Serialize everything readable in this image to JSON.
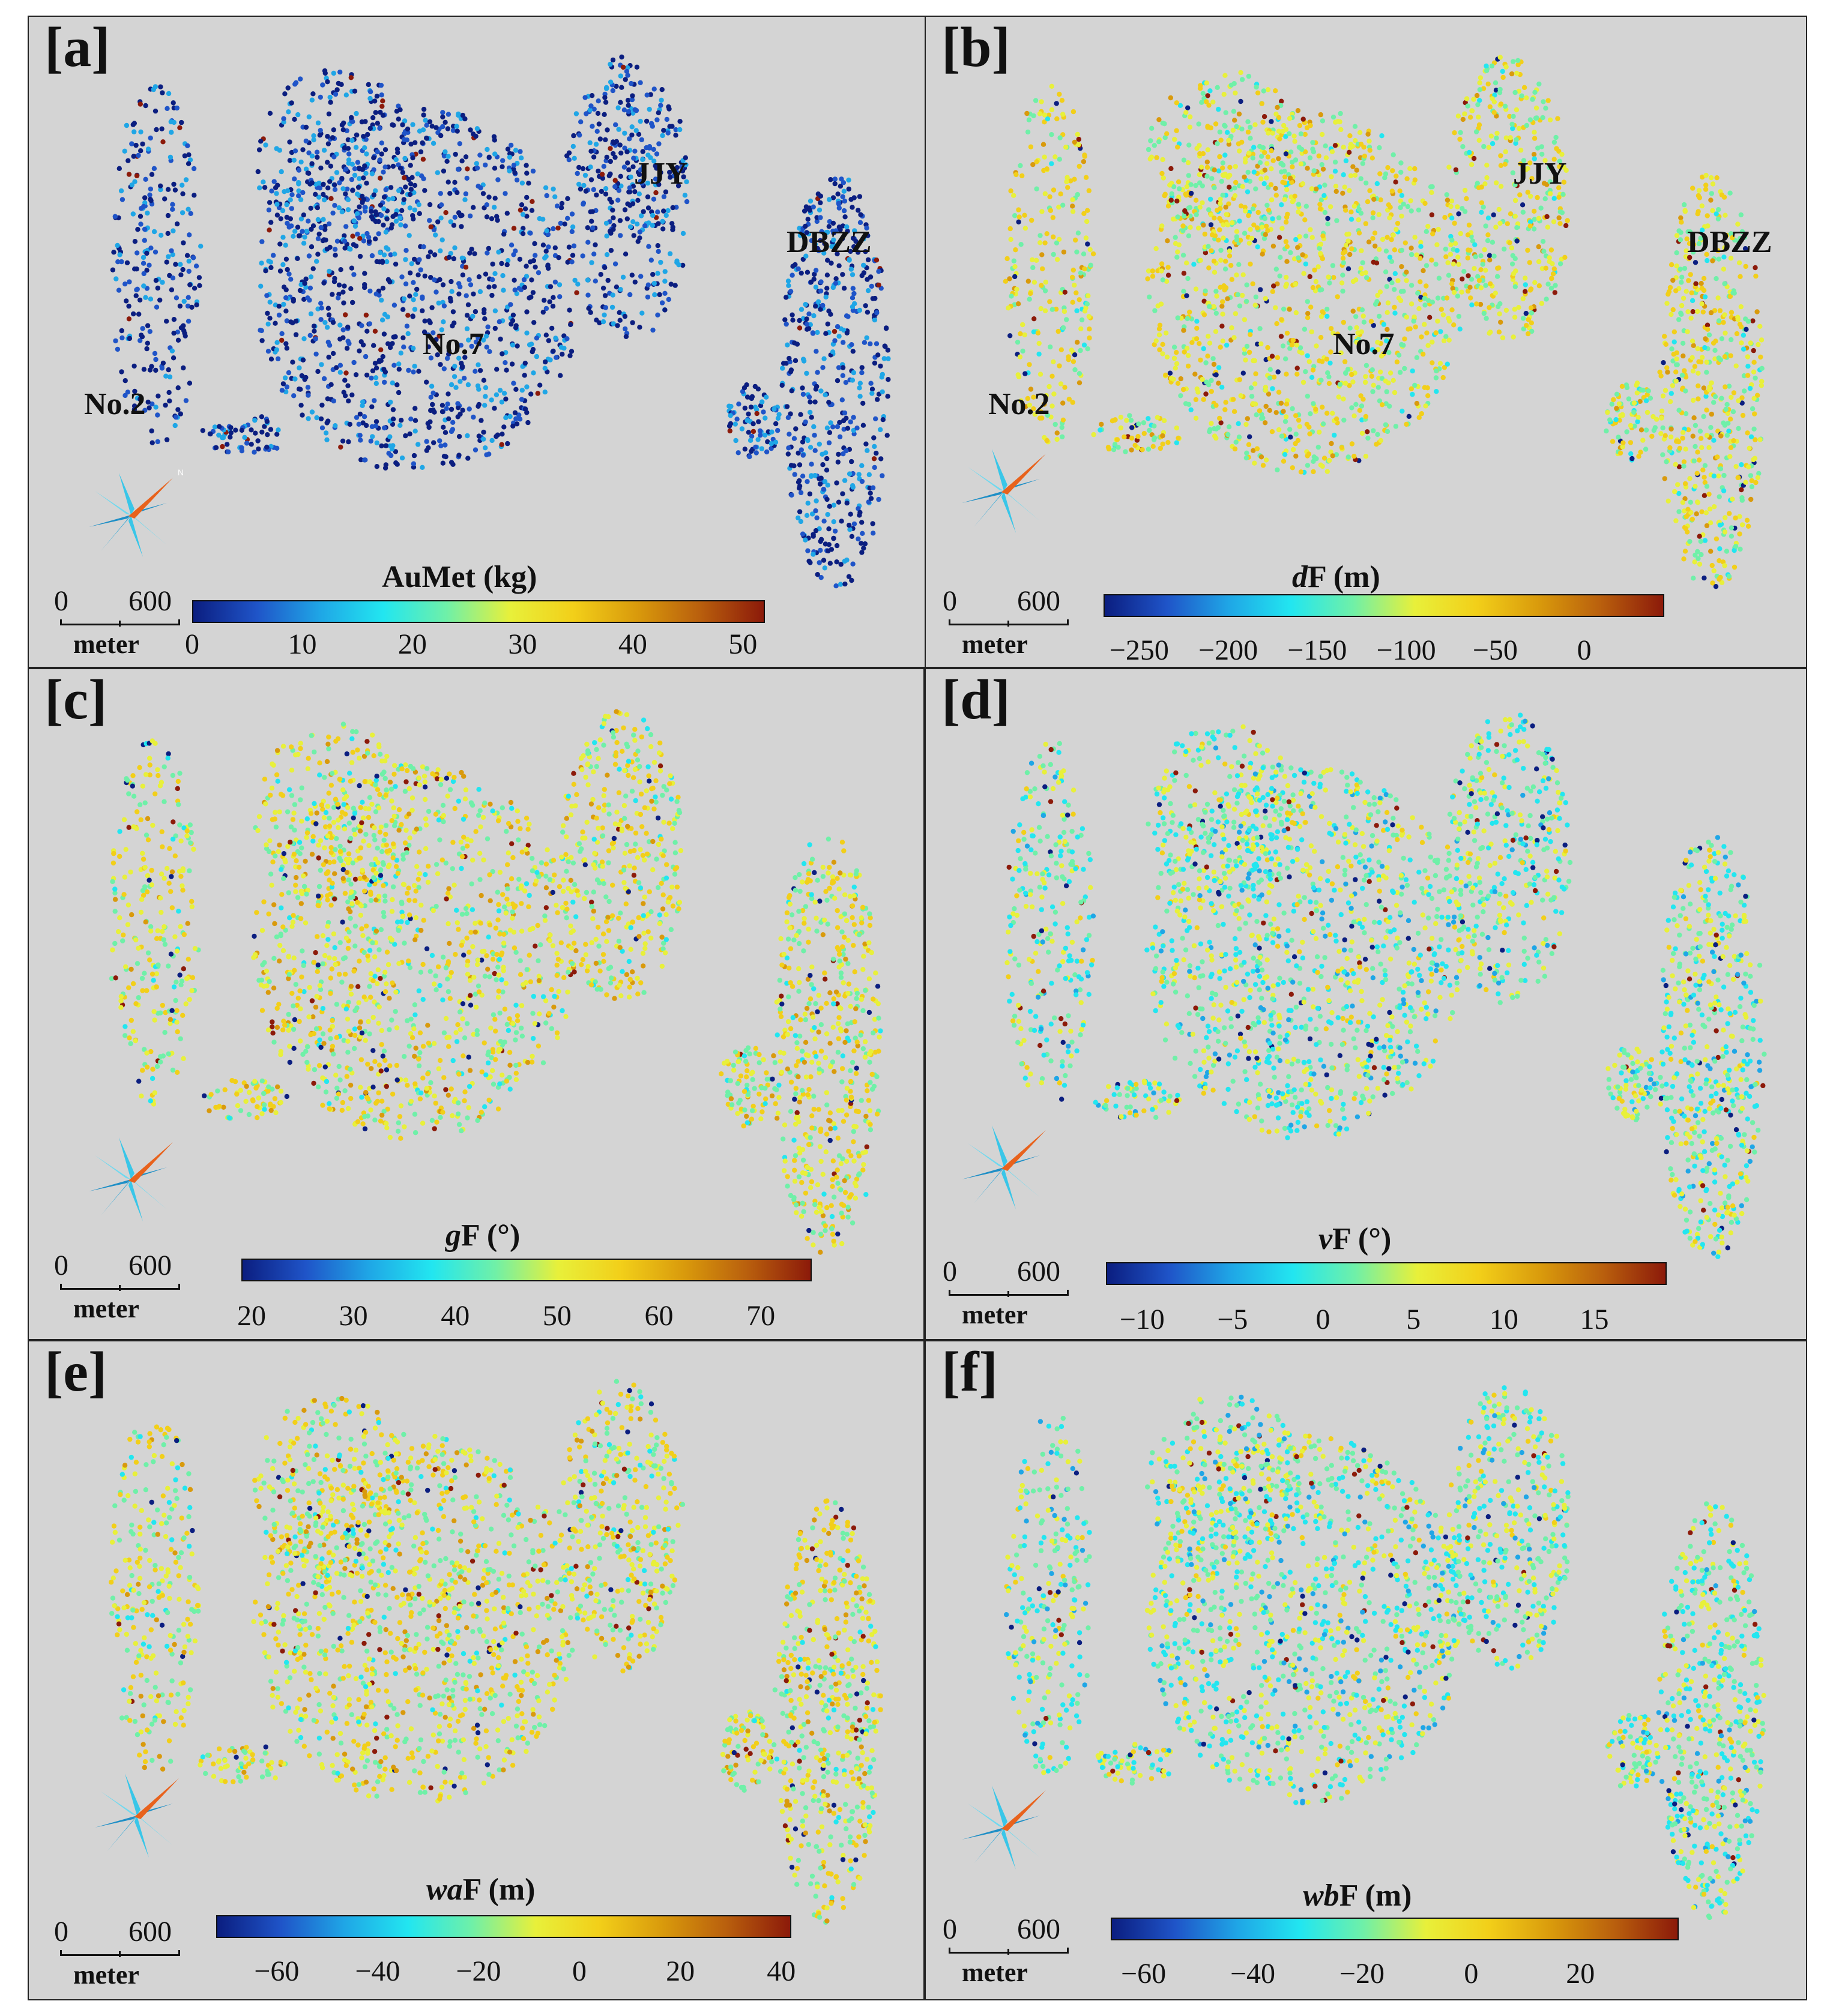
{
  "figure": {
    "panels": [
      {
        "id": "a",
        "label": "[a]",
        "cbar_title_prefix": "",
        "cbar_title_main": "AuMet (kg)",
        "ticks": [
          "0",
          "10",
          "20",
          "30",
          "40",
          "50"
        ],
        "tick_values": [
          0,
          10,
          20,
          30,
          40,
          50
        ],
        "range": [
          0,
          52
        ],
        "places": [
          "No.2",
          "No.7",
          "JJY",
          "DBZZ"
        ]
      },
      {
        "id": "b",
        "label": "[b]",
        "cbar_title_prefix": "d",
        "cbar_title_main": "F (m)",
        "ticks": [
          "−250",
          "−200",
          "−150",
          "−100",
          "−50",
          "0"
        ],
        "tick_values": [
          -250,
          -200,
          -150,
          -100,
          -50,
          0
        ],
        "range": [
          -270,
          45
        ],
        "places": [
          "No.2",
          "No.7",
          "JJY",
          "DBZZ"
        ]
      },
      {
        "id": "c",
        "label": "[c]",
        "cbar_title_prefix": "g",
        "cbar_title_main": "F (°)",
        "ticks": [
          "20",
          "30",
          "40",
          "50",
          "60",
          "70"
        ],
        "tick_values": [
          20,
          30,
          40,
          50,
          60,
          70
        ],
        "range": [
          19,
          75
        ],
        "places": []
      },
      {
        "id": "d",
        "label": "[d]",
        "cbar_title_prefix": "v",
        "cbar_title_main": "F  (°)",
        "ticks": [
          "−10",
          "−5",
          "0",
          "5",
          "10",
          "15"
        ],
        "tick_values": [
          -10,
          -5,
          0,
          5,
          10,
          15
        ],
        "range": [
          -12,
          19
        ],
        "places": []
      },
      {
        "id": "e",
        "label": "[e]",
        "cbar_title_prefix": "wa",
        "cbar_title_main": "F (m)",
        "ticks": [
          "−60",
          "−40",
          "−20",
          "0",
          "20",
          "40"
        ],
        "tick_values": [
          -60,
          -40,
          -20,
          0,
          20,
          40
        ],
        "range": [
          -72,
          42
        ],
        "places": []
      },
      {
        "id": "f",
        "label": "[f]",
        "cbar_title_prefix": "wb",
        "cbar_title_main": "F (m)",
        "ticks": [
          "−60",
          "−40",
          "−20",
          "0",
          "20"
        ],
        "tick_values": [
          -60,
          -40,
          -20,
          0,
          20
        ],
        "range": [
          -66,
          38
        ],
        "places": []
      }
    ],
    "scale_bar": {
      "start": "0",
      "end": "600",
      "unit": "meter"
    },
    "colormap": [
      "#0b1e80",
      "#1f54c8",
      "#1fa6e6",
      "#22e6f0",
      "#6ff0a8",
      "#e8f03a",
      "#f2cf19",
      "#d99a0c",
      "#b95f0d",
      "#8c1a0a"
    ],
    "background_color": "#d4d4d4"
  }
}
